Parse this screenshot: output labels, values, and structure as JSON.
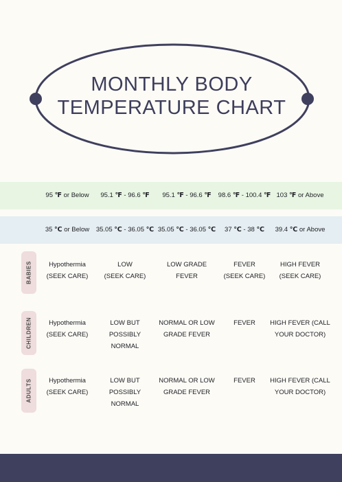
{
  "title": {
    "line1": "MONTHLY BODY",
    "line2": "TEMPERATURE CHART"
  },
  "colors": {
    "background": "#fcfbf6",
    "navy": "#3f3f5e",
    "fahrenheit_band": "#e8f5e3",
    "celsius_band": "#e5eef2",
    "row_tab": "#efdcdc"
  },
  "fahrenheit_ranges": [
    {
      "value": "95",
      "unit": "℉",
      "suffix": " or Below"
    },
    {
      "value": "95.1",
      "unit": "℉",
      "suffix": " - 96.6",
      "unit2": "℉"
    },
    {
      "value": "95.1",
      "unit": "℉",
      "suffix": " - 96.6",
      "unit2": "℉"
    },
    {
      "value": "98.6",
      "unit": "℉",
      "suffix": " - 100.4",
      "unit2": "℉"
    },
    {
      "value": "103",
      "unit": "℉",
      "suffix": " or Above"
    }
  ],
  "celsius_ranges": [
    {
      "value": "35",
      "unit": "℃",
      "suffix": " or Below"
    },
    {
      "value": "35.05",
      "unit": "℃",
      "suffix": " - 36.05",
      "unit2": "℃"
    },
    {
      "value": "35.05",
      "unit": "℃",
      "suffix": " - 36.05",
      "unit2": "℃"
    },
    {
      "value": "37",
      "unit": "℃",
      "suffix": " - 38",
      "unit2": "℃"
    },
    {
      "value": "39.4",
      "unit": "℃",
      "suffix": " or Above"
    }
  ],
  "rows": [
    {
      "label": "BABIES",
      "cells": [
        {
          "line1": "Hypothermia",
          "line2": "(SEEK CARE)"
        },
        {
          "line1": "LOW",
          "line2": "(SEEK CARE)"
        },
        {
          "line1": "LOW GRADE",
          "line2": "FEVER"
        },
        {
          "line1": "FEVER",
          "line2": "(SEEK CARE)"
        },
        {
          "line1": "HIGH FEVER",
          "line2": "(SEEK CARE)"
        }
      ]
    },
    {
      "label": "CHILDREN",
      "cells": [
        {
          "line1": "Hypothermia",
          "line2": "(SEEK CARE)"
        },
        {
          "line1": "LOW BUT POSSIBLY",
          "line2": "NORMAL"
        },
        {
          "line1": "NORMAL OR LOW",
          "line2": "GRADE FEVER"
        },
        {
          "line1": "FEVER",
          "line2": ""
        },
        {
          "line1": "HIGH FEVER (CALL",
          "line2": "YOUR DOCTOR)"
        }
      ]
    },
    {
      "label": "ADULTS",
      "cells": [
        {
          "line1": "Hypothermia",
          "line2": "(SEEK CARE)"
        },
        {
          "line1": "LOW BUT POSSIBLY",
          "line2": "NORMAL"
        },
        {
          "line1": "NORMAL OR LOW",
          "line2": "GRADE FEVER"
        },
        {
          "line1": "FEVER",
          "line2": ""
        },
        {
          "line1": "HIGH FEVER (CALL",
          "line2": "YOUR DOCTOR)"
        }
      ]
    }
  ]
}
